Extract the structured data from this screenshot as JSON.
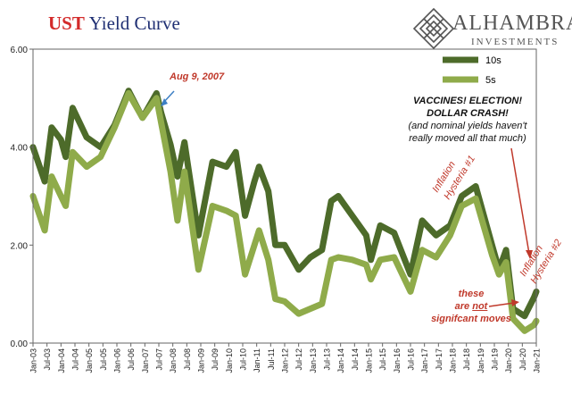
{
  "title": {
    "part1": "UST",
    "part2": "Yield Curve"
  },
  "logo": {
    "name": "ALHAMBRA",
    "sub": "INVESTMENTS",
    "icon": "alhambra-lattice-icon"
  },
  "colors": {
    "ten_year": "#4d6b2a",
    "five_year": "#8fab4a",
    "red": "#c0392b",
    "arrow_blue": "#3d7fc4"
  },
  "annotations": {
    "aug": "Aug 9, 2007",
    "vaccines_line1": "VACCINES! ELECTION!",
    "vaccines_line2": "DOLLAR CRASH!",
    "vaccines_line3": "(and nominal yields haven't",
    "vaccines_line4": "really moved all that much)",
    "hysteria1_line1": "Inflation",
    "hysteria1_line2": "Hysteria #1",
    "hysteria2_line1": "Inflation",
    "hysteria2_line2": "Hysteria #2",
    "these_line1": "these",
    "these_line2a": "are ",
    "these_line2b": "not",
    "these_line3": "signifcant moves"
  },
  "chart_data": {
    "type": "line",
    "ylim": [
      0,
      6
    ],
    "yticks": [
      "0.00",
      "2.00",
      "4.00",
      "6.00"
    ],
    "xlim": [
      "2003-01",
      "2021-01"
    ],
    "xticks": [
      "Jan-03",
      "Jul-03",
      "Jan-04",
      "Jul-04",
      "Jan-05",
      "Jul-05",
      "Jan-06",
      "Jul-06",
      "Jan-07",
      "Jul-07",
      "Jan-08",
      "Jul-08",
      "Jan-09",
      "Jul-09",
      "Jan-10",
      "Jul-10",
      "Jan-11",
      "Jul-11",
      "Jan-12",
      "Jul-12",
      "Jan-13",
      "Jul-13",
      "Jan-14",
      "Jul-14",
      "Jan-15",
      "Jul-15",
      "Jan-16",
      "Jul-16",
      "Jan-17",
      "Jul-17",
      "Jan-18",
      "Jul-18",
      "Jan-19",
      "Jul-19",
      "Jan-20",
      "Jul-20",
      "Jan-21"
    ],
    "legend_position": "top-right",
    "grid": false,
    "series": [
      {
        "name": "10s",
        "color": "#4d6b2a",
        "points": [
          [
            "2003-01",
            4.0
          ],
          [
            "2003-06",
            3.3
          ],
          [
            "2003-09",
            4.4
          ],
          [
            "2004-01",
            4.15
          ],
          [
            "2004-03",
            3.8
          ],
          [
            "2004-06",
            4.8
          ],
          [
            "2004-12",
            4.2
          ],
          [
            "2005-06",
            4.0
          ],
          [
            "2005-12",
            4.45
          ],
          [
            "2006-06",
            5.15
          ],
          [
            "2006-12",
            4.6
          ],
          [
            "2007-06",
            5.1
          ],
          [
            "2007-08",
            4.7
          ],
          [
            "2007-12",
            4.05
          ],
          [
            "2008-03",
            3.4
          ],
          [
            "2008-06",
            4.1
          ],
          [
            "2008-12",
            2.2
          ],
          [
            "2009-06",
            3.7
          ],
          [
            "2009-12",
            3.6
          ],
          [
            "2010-04",
            3.9
          ],
          [
            "2010-08",
            2.6
          ],
          [
            "2010-12",
            3.3
          ],
          [
            "2011-02",
            3.6
          ],
          [
            "2011-06",
            3.1
          ],
          [
            "2011-09",
            2.0
          ],
          [
            "2012-01",
            2.0
          ],
          [
            "2012-07",
            1.5
          ],
          [
            "2012-12",
            1.75
          ],
          [
            "2013-05",
            1.9
          ],
          [
            "2013-09",
            2.9
          ],
          [
            "2013-12",
            3.0
          ],
          [
            "2014-06",
            2.6
          ],
          [
            "2014-12",
            2.2
          ],
          [
            "2015-02",
            1.7
          ],
          [
            "2015-06",
            2.4
          ],
          [
            "2015-12",
            2.25
          ],
          [
            "2016-07",
            1.4
          ],
          [
            "2016-12",
            2.5
          ],
          [
            "2017-06",
            2.2
          ],
          [
            "2017-12",
            2.4
          ],
          [
            "2018-05",
            3.0
          ],
          [
            "2018-11",
            3.2
          ],
          [
            "2019-06",
            2.0
          ],
          [
            "2019-09",
            1.5
          ],
          [
            "2019-12",
            1.9
          ],
          [
            "2020-03",
            0.7
          ],
          [
            "2020-08",
            0.55
          ],
          [
            "2020-12",
            0.93
          ],
          [
            "2021-01",
            1.05
          ]
        ]
      },
      {
        "name": "5s",
        "color": "#8fab4a",
        "points": [
          [
            "2003-01",
            3.0
          ],
          [
            "2003-06",
            2.3
          ],
          [
            "2003-09",
            3.4
          ],
          [
            "2004-01",
            3.0
          ],
          [
            "2004-03",
            2.8
          ],
          [
            "2004-06",
            3.9
          ],
          [
            "2004-12",
            3.6
          ],
          [
            "2005-06",
            3.8
          ],
          [
            "2005-12",
            4.4
          ],
          [
            "2006-06",
            5.1
          ],
          [
            "2006-12",
            4.6
          ],
          [
            "2007-06",
            5.0
          ],
          [
            "2007-08",
            4.5
          ],
          [
            "2007-12",
            3.5
          ],
          [
            "2008-03",
            2.5
          ],
          [
            "2008-06",
            3.5
          ],
          [
            "2008-12",
            1.5
          ],
          [
            "2009-06",
            2.8
          ],
          [
            "2009-12",
            2.7
          ],
          [
            "2010-04",
            2.6
          ],
          [
            "2010-08",
            1.4
          ],
          [
            "2010-12",
            2.0
          ],
          [
            "2011-02",
            2.3
          ],
          [
            "2011-06",
            1.7
          ],
          [
            "2011-09",
            0.9
          ],
          [
            "2012-01",
            0.85
          ],
          [
            "2012-07",
            0.6
          ],
          [
            "2012-12",
            0.7
          ],
          [
            "2013-05",
            0.8
          ],
          [
            "2013-09",
            1.7
          ],
          [
            "2013-12",
            1.75
          ],
          [
            "2014-06",
            1.7
          ],
          [
            "2014-12",
            1.6
          ],
          [
            "2015-02",
            1.3
          ],
          [
            "2015-06",
            1.7
          ],
          [
            "2015-12",
            1.75
          ],
          [
            "2016-07",
            1.05
          ],
          [
            "2016-12",
            1.9
          ],
          [
            "2017-06",
            1.75
          ],
          [
            "2017-12",
            2.2
          ],
          [
            "2018-05",
            2.8
          ],
          [
            "2018-11",
            2.95
          ],
          [
            "2019-06",
            1.8
          ],
          [
            "2019-09",
            1.4
          ],
          [
            "2019-12",
            1.65
          ],
          [
            "2020-03",
            0.5
          ],
          [
            "2020-08",
            0.25
          ],
          [
            "2020-12",
            0.37
          ],
          [
            "2021-01",
            0.45
          ]
        ]
      }
    ]
  }
}
